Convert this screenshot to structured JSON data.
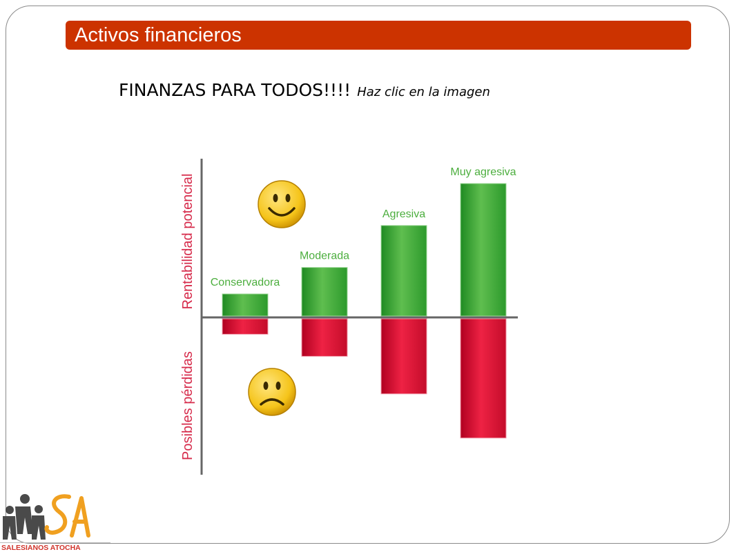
{
  "slide": {
    "title": "Activos financieros",
    "headline": "FINANZAS PARA TODOS!!!!",
    "headline_hint": "Haz clic en la imagen"
  },
  "chart_data": {
    "type": "bar",
    "categories": [
      "Conservadora",
      "Moderada",
      "Agresiva",
      "Muy agresiva"
    ],
    "series": [
      {
        "name": "Rentabilidad potencial",
        "values": [
          1.0,
          2.2,
          4.1,
          6.0
        ],
        "color": "#3aa63a"
      },
      {
        "name": "Posibles pérdidas",
        "values": [
          -0.7,
          -1.7,
          -3.4,
          -5.4
        ],
        "color": "#dd1133"
      }
    ],
    "ylabel_top": "Rentabilidad potencial",
    "ylabel_bottom": "Posibles pérdidas",
    "ylim": [
      -6,
      7
    ],
    "icons": [
      "smiley-happy-icon",
      "smiley-sad-icon"
    ]
  },
  "logo": {
    "text": "SALESIANOS ATOCHA",
    "colors": {
      "figures": "#4a4a4a",
      "sa": "#f0a020"
    }
  }
}
